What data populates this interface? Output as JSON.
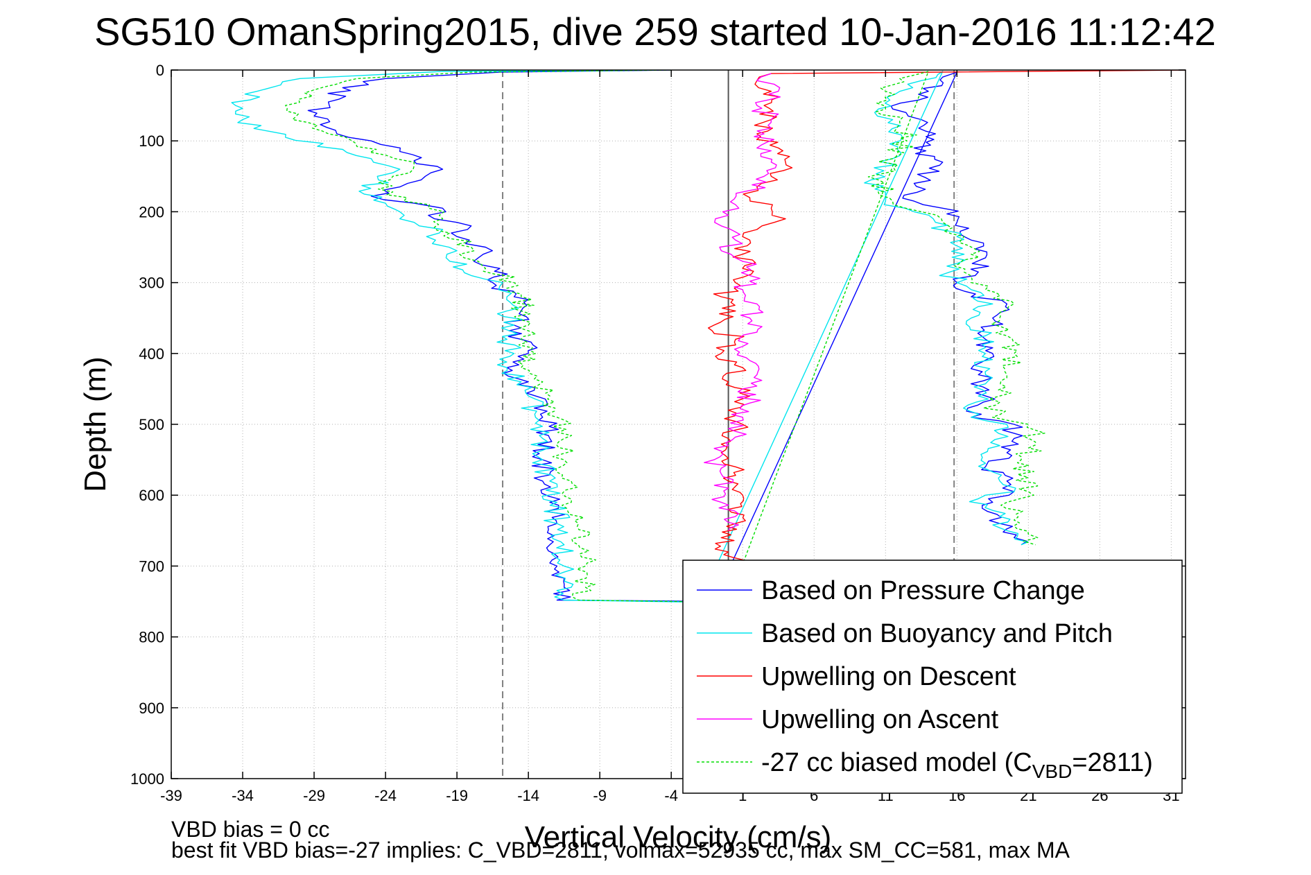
{
  "chart_data": {
    "type": "line",
    "title": "SG510 OmanSpring2015, dive 259 started 10-Jan-2016 11:12:42",
    "xlabel": "Vertical Velocity (cm/s)",
    "ylabel": "Depth (m)",
    "xlim": [
      -39,
      32
    ],
    "ylim": [
      0,
      1000
    ],
    "y_reversed": true,
    "xticks": [
      -39,
      -34,
      -29,
      -24,
      -19,
      -14,
      -9,
      -4,
      1,
      6,
      11,
      16,
      21,
      26,
      31
    ],
    "yticks": [
      0,
      100,
      200,
      300,
      400,
      500,
      600,
      700,
      800,
      900,
      1000
    ],
    "grid": true,
    "legend_position": "bottom-right",
    "reference_lines": [
      {
        "x": -15.8,
        "style": "dashed",
        "color": "#808080"
      },
      {
        "x": 15.8,
        "style": "dashed",
        "color": "#808080"
      },
      {
        "x": 0,
        "style": "solid",
        "color": "#555555"
      }
    ],
    "series": [
      {
        "name": "Based on Pressure Change",
        "color": "#0000ff",
        "dash": "solid",
        "points": [
          [
            -4,
            0
          ],
          [
            -16,
            3
          ],
          [
            -24,
            12
          ],
          [
            -27,
            25
          ],
          [
            -28,
            45
          ],
          [
            -29,
            65
          ],
          [
            -27.5,
            85
          ],
          [
            -25,
            100
          ],
          [
            -23,
            115
          ],
          [
            -22,
            128
          ],
          [
            -20,
            140
          ],
          [
            -21.5,
            155
          ],
          [
            -23,
            165
          ],
          [
            -25,
            178
          ],
          [
            -22,
            188
          ],
          [
            -20,
            195
          ],
          [
            -21,
            205
          ],
          [
            -18,
            220
          ],
          [
            -19,
            235
          ],
          [
            -17,
            250
          ],
          [
            -17.5,
            265
          ],
          [
            -16,
            280
          ],
          [
            -16.5,
            300
          ],
          [
            -15,
            320
          ],
          [
            -14.5,
            340
          ],
          [
            -15,
            360
          ],
          [
            -14.5,
            380
          ],
          [
            -14,
            400
          ],
          [
            -15.5,
            420
          ],
          [
            -14,
            440
          ],
          [
            -13.5,
            460
          ],
          [
            -13,
            490
          ],
          [
            -12.5,
            520
          ],
          [
            -13,
            550
          ],
          [
            -13,
            580
          ],
          [
            -12.5,
            610
          ],
          [
            -12,
            640
          ],
          [
            -12.5,
            670
          ],
          [
            -12,
            700
          ],
          [
            -11.5,
            730
          ],
          [
            -12,
            748
          ],
          [
            -1,
            750
          ],
          [
            16,
            3
          ],
          [
            15,
            10
          ],
          [
            14,
            30
          ],
          [
            11.5,
            55
          ],
          [
            13.5,
            70
          ],
          [
            14.5,
            90
          ],
          [
            13,
            110
          ],
          [
            15,
            130
          ],
          [
            13,
            160
          ],
          [
            13,
            185
          ],
          [
            15,
            195
          ],
          [
            16,
            215
          ],
          [
            17,
            240
          ],
          [
            18,
            265
          ],
          [
            17.5,
            285
          ],
          [
            16,
            300
          ],
          [
            17,
            320
          ],
          [
            19.5,
            330
          ],
          [
            18.5,
            350
          ],
          [
            18,
            380
          ],
          [
            18.5,
            400
          ],
          [
            17.5,
            430
          ],
          [
            18,
            460
          ],
          [
            17,
            490
          ],
          [
            20,
            500
          ],
          [
            20,
            520
          ],
          [
            19.5,
            540
          ],
          [
            18,
            560
          ],
          [
            19.5,
            580
          ],
          [
            20,
            595
          ],
          [
            18.5,
            610
          ],
          [
            19,
            640
          ],
          [
            20,
            660
          ],
          [
            20.5,
            670
          ]
        ]
      },
      {
        "name": "Based on Buoyancy and Pitch",
        "color": "#00e5ee",
        "dash": "solid",
        "points": [
          [
            -5,
            0
          ],
          [
            -20,
            2
          ],
          [
            -30,
            12
          ],
          [
            -33,
            30
          ],
          [
            -34.5,
            50
          ],
          [
            -34,
            70
          ],
          [
            -31,
            95
          ],
          [
            -27,
            112
          ],
          [
            -25,
            125
          ],
          [
            -23,
            140
          ],
          [
            -24.5,
            155
          ],
          [
            -25.5,
            175
          ],
          [
            -24,
            188
          ],
          [
            -23,
            200
          ],
          [
            -22,
            215
          ],
          [
            -20,
            225
          ],
          [
            -20.5,
            240
          ],
          [
            -19,
            255
          ],
          [
            -19.5,
            270
          ],
          [
            -18,
            290
          ],
          [
            -16,
            305
          ],
          [
            -15.5,
            320
          ],
          [
            -15.5,
            340
          ],
          [
            -15,
            360
          ],
          [
            -15.5,
            380
          ],
          [
            -15,
            400
          ],
          [
            -15.5,
            420
          ],
          [
            -14.5,
            440
          ],
          [
            -14,
            460
          ],
          [
            -13.5,
            490
          ],
          [
            -13,
            520
          ],
          [
            -13,
            550
          ],
          [
            -12.5,
            580
          ],
          [
            -12,
            610
          ],
          [
            -12,
            640
          ],
          [
            -11.5,
            670
          ],
          [
            -11.5,
            700
          ],
          [
            -11,
            730
          ],
          [
            -11.5,
            748
          ],
          [
            -2,
            751
          ],
          [
            15,
            2
          ],
          [
            13.5,
            15
          ],
          [
            12,
            30
          ],
          [
            10.5,
            55
          ],
          [
            11.5,
            70
          ],
          [
            12,
            100
          ],
          [
            11.5,
            125
          ],
          [
            10,
            155
          ],
          [
            11,
            185
          ],
          [
            13,
            200
          ],
          [
            14.5,
            215
          ],
          [
            16,
            235
          ],
          [
            16.5,
            260
          ],
          [
            15.5,
            285
          ],
          [
            16,
            300
          ],
          [
            17,
            310
          ],
          [
            18.5,
            330
          ],
          [
            17,
            350
          ],
          [
            18,
            375
          ],
          [
            18,
            400
          ],
          [
            18,
            430
          ],
          [
            17.5,
            460
          ],
          [
            17,
            490
          ],
          [
            19.5,
            500
          ],
          [
            19,
            530
          ],
          [
            18,
            555
          ],
          [
            19,
            580
          ],
          [
            20,
            595
          ],
          [
            17.5,
            605
          ],
          [
            19,
            630
          ],
          [
            19.5,
            650
          ],
          [
            20.5,
            670
          ]
        ]
      },
      {
        "name": "Upwelling on Descent",
        "color": "#ff0000",
        "dash": "solid",
        "points": [
          [
            32,
            0
          ],
          [
            3,
            5
          ],
          [
            2,
            15
          ],
          [
            3,
            30
          ],
          [
            2.5,
            50
          ],
          [
            3,
            70
          ],
          [
            2,
            90
          ],
          [
            3.5,
            110
          ],
          [
            4,
            130
          ],
          [
            3,
            150
          ],
          [
            2,
            165
          ],
          [
            1.5,
            180
          ],
          [
            3,
            195
          ],
          [
            4,
            210
          ],
          [
            2,
            225
          ],
          [
            1.5,
            240
          ],
          [
            1,
            260
          ],
          [
            1,
            280
          ],
          [
            0.5,
            300
          ],
          [
            -0.5,
            320
          ],
          [
            0.5,
            340
          ],
          [
            -1,
            360
          ],
          [
            0.5,
            380
          ],
          [
            -0.5,
            400
          ],
          [
            1,
            420
          ],
          [
            0,
            440
          ],
          [
            1.5,
            460
          ],
          [
            0,
            480
          ],
          [
            1,
            500
          ],
          [
            0,
            520
          ],
          [
            -0.5,
            540
          ],
          [
            0.5,
            560
          ],
          [
            0,
            580
          ],
          [
            1,
            600
          ],
          [
            0,
            620
          ],
          [
            0.5,
            640
          ],
          [
            -0.5,
            660
          ],
          [
            0,
            680
          ],
          [
            0.5,
            700
          ]
        ]
      },
      {
        "name": "Upwelling on Ascent",
        "color": "#ff00ff",
        "dash": "solid",
        "points": [
          [
            3,
            5
          ],
          [
            2,
            15
          ],
          [
            3.5,
            30
          ],
          [
            2,
            50
          ],
          [
            3,
            70
          ],
          [
            2.5,
            90
          ],
          [
            2,
            110
          ],
          [
            3,
            130
          ],
          [
            2.5,
            150
          ],
          [
            1.5,
            170
          ],
          [
            0.5,
            190
          ],
          [
            0,
            205
          ],
          [
            -0.5,
            220
          ],
          [
            0.5,
            240
          ],
          [
            -0.5,
            255
          ],
          [
            1,
            270
          ],
          [
            1.5,
            290
          ],
          [
            1,
            310
          ],
          [
            2,
            330
          ],
          [
            1.5,
            350
          ],
          [
            2,
            370
          ],
          [
            1,
            390
          ],
          [
            1.5,
            410
          ],
          [
            2,
            430
          ],
          [
            1,
            450
          ],
          [
            1.5,
            470
          ],
          [
            1,
            490
          ],
          [
            0.5,
            510
          ],
          [
            0,
            530
          ],
          [
            -1,
            550
          ],
          [
            -0.5,
            570
          ],
          [
            0,
            590
          ],
          [
            -0.5,
            610
          ],
          [
            0.5,
            630
          ],
          [
            0,
            650
          ]
        ]
      },
      {
        "name": "-27 cc biased model (C<sub>VBD</sub>=2811)",
        "color": "#00dd00",
        "dash": "4,3",
        "points": [
          [
            -4,
            0
          ],
          [
            -18,
            3
          ],
          [
            -26,
            12
          ],
          [
            -29,
            28
          ],
          [
            -31,
            50
          ],
          [
            -30.5,
            70
          ],
          [
            -28,
            90
          ],
          [
            -26,
            108
          ],
          [
            -24,
            120
          ],
          [
            -22,
            135
          ],
          [
            -23.5,
            150
          ],
          [
            -24.5,
            168
          ],
          [
            -22.5,
            180
          ],
          [
            -21,
            195
          ],
          [
            -20,
            210
          ],
          [
            -19.5,
            230
          ],
          [
            -18,
            250
          ],
          [
            -18.5,
            265
          ],
          [
            -17,
            280
          ],
          [
            -15,
            300
          ],
          [
            -14.5,
            320
          ],
          [
            -14.5,
            340
          ],
          [
            -14,
            360
          ],
          [
            -14.5,
            380
          ],
          [
            -13.5,
            400
          ],
          [
            -14.5,
            420
          ],
          [
            -13,
            440
          ],
          [
            -12.5,
            460
          ],
          [
            -12,
            490
          ],
          [
            -11.5,
            520
          ],
          [
            -11.5,
            550
          ],
          [
            -11,
            580
          ],
          [
            -11,
            610
          ],
          [
            -10.5,
            640
          ],
          [
            -10.5,
            670
          ],
          [
            -10,
            700
          ],
          [
            -10,
            730
          ],
          [
            -10.5,
            748
          ],
          [
            0,
            751
          ],
          [
            14,
            2
          ],
          [
            12,
            12
          ],
          [
            11,
            30
          ],
          [
            11,
            55
          ],
          [
            12,
            75
          ],
          [
            12.5,
            100
          ],
          [
            11.5,
            125
          ],
          [
            10.5,
            155
          ],
          [
            11.5,
            185
          ],
          [
            13.5,
            200
          ],
          [
            15,
            215
          ],
          [
            16.5,
            235
          ],
          [
            17,
            260
          ],
          [
            16.5,
            285
          ],
          [
            17,
            300
          ],
          [
            18,
            310
          ],
          [
            20,
            330
          ],
          [
            19,
            350
          ],
          [
            19.5,
            375
          ],
          [
            20,
            400
          ],
          [
            19.5,
            430
          ],
          [
            19,
            460
          ],
          [
            18.5,
            490
          ],
          [
            21,
            500
          ],
          [
            21.5,
            525
          ],
          [
            20.5,
            550
          ],
          [
            21,
            575
          ],
          [
            21,
            595
          ],
          [
            19.5,
            610
          ],
          [
            20,
            635
          ],
          [
            21,
            655
          ],
          [
            21.5,
            670
          ]
        ]
      }
    ],
    "notes": [
      "VBD bias = 0 cc",
      "best fit VBD bias=-27 implies: C_VBD=2811, volmax=52935 cc, max SM_CC=581, max MA"
    ]
  }
}
